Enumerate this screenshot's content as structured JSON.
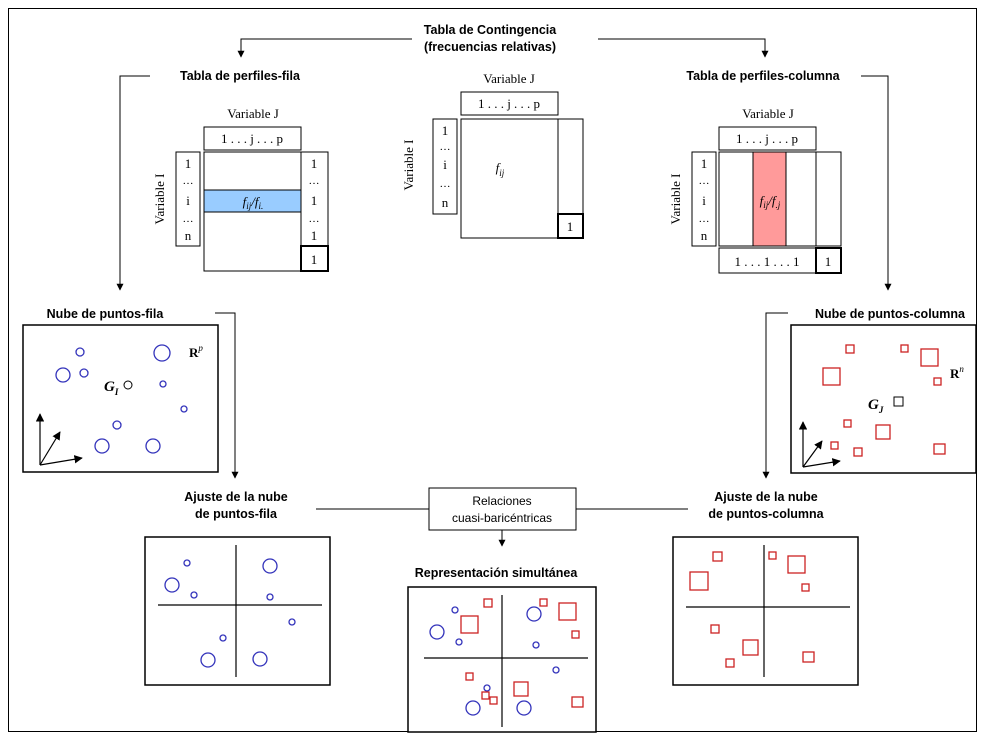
{
  "top": {
    "title_line1": "Tabla de Contingencia",
    "title_line2": "(frecuencias relativas)"
  },
  "center_table": {
    "col_var": "Variable J",
    "row_var": "Variable I",
    "col_index": "1 . . . j . . . p",
    "rows": [
      "1",
      "…",
      "i",
      "…",
      "n"
    ],
    "cell": "f",
    "cell_sub": "ij",
    "total": "1"
  },
  "row_profiles": {
    "title": "Tabla de perfiles-fila",
    "col_var": "Variable J",
    "row_var": "Variable I",
    "col_index": "1 . . . j . . . p",
    "rows": [
      "1",
      "…",
      "i",
      "…",
      "n"
    ],
    "margin": [
      "1",
      "…",
      "1",
      "…",
      "1"
    ],
    "cell": "f",
    "cell_sub1": "ij",
    "cell_mid": "/f",
    "cell_sub2": "i.",
    "total": "1",
    "highlight_color": "#99ccff"
  },
  "col_profiles": {
    "title": "Tabla de perfiles-columna",
    "col_var": "Variable J",
    "row_var": "Variable I",
    "col_index": "1 . . . j . . . p",
    "rows": [
      "1",
      "…",
      "i",
      "…",
      "n"
    ],
    "bottom": "1 . . . 1 . . . 1",
    "cell": "f",
    "cell_sub1": "ij",
    "cell_mid": "/f",
    "cell_sub2": ".j",
    "total": "1",
    "highlight_color": "#ff9a9a"
  },
  "row_cloud": {
    "title": "Nube de puntos-fila",
    "space": "R",
    "space_sup": "p",
    "centroid": "G",
    "centroid_sub": "I",
    "point_color": "#3333bb"
  },
  "col_cloud": {
    "title": "Nube de puntos-columna",
    "space": "R",
    "space_sup": "n",
    "centroid": "G",
    "centroid_sub": "J",
    "point_color": "#cc2222"
  },
  "row_fit": {
    "title_line1": "Ajuste de la nube",
    "title_line2": "de puntos-fila"
  },
  "col_fit": {
    "title_line1": "Ajuste de la nube",
    "title_line2": "de puntos-columna"
  },
  "relations": {
    "line1": "Relaciones",
    "line2": "cuasi-baricéntricas"
  },
  "simultaneous": {
    "title": "Representación simultánea"
  }
}
